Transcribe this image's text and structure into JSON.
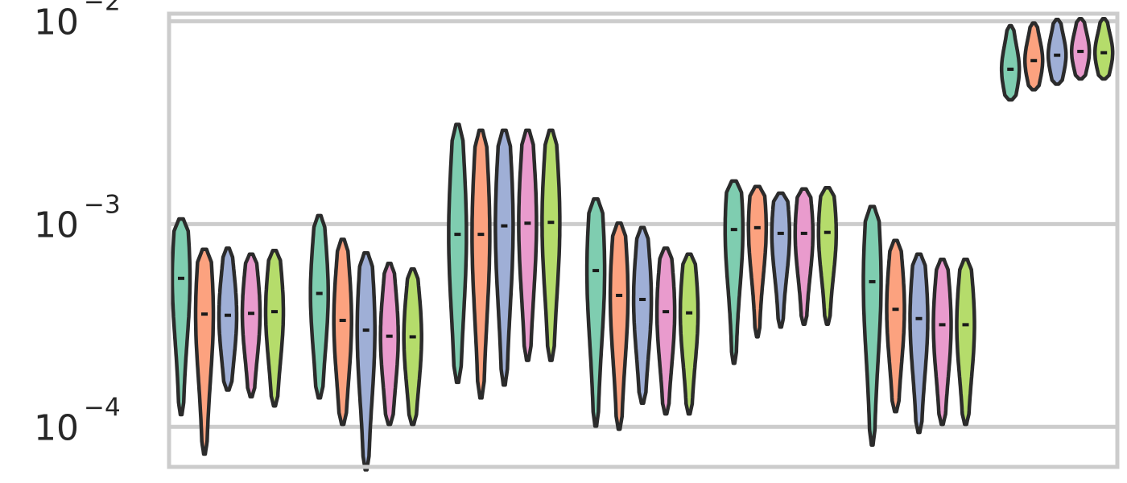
{
  "chart_data": {
    "type": "violin",
    "title": "",
    "xlabel": "",
    "ylabel": "",
    "yscale": "log",
    "ylim": [
      6e-05,
      0.0115
    ],
    "grid": true,
    "legend": "none",
    "y_ticks": [
      {
        "value": 0.0001,
        "base": "10",
        "exp": "−4"
      },
      {
        "value": 0.001,
        "base": "10",
        "exp": "−3"
      },
      {
        "value": 0.01,
        "base": "10",
        "exp": "−2"
      }
    ],
    "series_colors": [
      "#7fcdb0",
      "#fca27f",
      "#9fafd6",
      "#e99bcd",
      "#b5dc6b"
    ],
    "groups": [
      {
        "violins": [
          {
            "min": 0.000115,
            "max": 0.00106,
            "median": 0.00054
          },
          {
            "min": 7.35e-05,
            "max": 0.00075,
            "median": 0.00036
          },
          {
            "min": 0.000152,
            "max": 0.00076,
            "median": 0.000355
          },
          {
            "min": 0.000141,
            "max": 0.00071,
            "median": 0.000363
          },
          {
            "min": 0.000127,
            "max": 0.00074,
            "median": 0.00037
          }
        ]
      },
      {
        "violins": [
          {
            "min": 0.000139,
            "max": 0.0011,
            "median": 0.000455
          },
          {
            "min": 0.000103,
            "max": 0.00084,
            "median": 0.000335
          },
          {
            "min": 6.15e-05,
            "max": 0.00072,
            "median": 0.0003
          },
          {
            "min": 0.000103,
            "max": 0.00064,
            "median": 0.00028
          },
          {
            "min": 0.000103,
            "max": 0.0006,
            "median": 0.000278
          }
        ]
      },
      {
        "violins": [
          {
            "min": 0.000166,
            "max": 0.0031,
            "median": 0.00089
          },
          {
            "min": 0.000139,
            "max": 0.0029,
            "median": 0.00089
          },
          {
            "min": 0.000161,
            "max": 0.0029,
            "median": 0.00098
          },
          {
            "min": 0.000213,
            "max": 0.0029,
            "median": 0.00101
          },
          {
            "min": 0.000213,
            "max": 0.0029,
            "median": 0.00102
          }
        ]
      },
      {
        "violins": [
          {
            "min": 0.000101,
            "max": 0.00133,
            "median": 0.00059
          },
          {
            "min": 9.75e-05,
            "max": 0.00101,
            "median": 0.000445
          },
          {
            "min": 0.000131,
            "max": 0.00096,
            "median": 0.000425
          },
          {
            "min": 0.000116,
            "max": 0.00076,
            "median": 0.00037
          },
          {
            "min": 0.000116,
            "max": 0.00071,
            "median": 0.000365
          }
        ]
      },
      {
        "violins": [
          {
            "min": 0.000206,
            "max": 0.00163,
            "median": 0.00094
          },
          {
            "min": 0.000278,
            "max": 0.00153,
            "median": 0.00096
          },
          {
            "min": 0.000311,
            "max": 0.00142,
            "median": 0.0009
          },
          {
            "min": 0.000321,
            "max": 0.00149,
            "median": 0.0009
          },
          {
            "min": 0.000321,
            "max": 0.00151,
            "median": 0.00091
          }
        ]
      },
      {
        "violins": [
          {
            "min": 8.15e-05,
            "max": 0.00122,
            "median": 0.00052
          },
          {
            "min": 0.000119,
            "max": 0.00083,
            "median": 0.00038
          },
          {
            "min": 9.4e-05,
            "max": 0.00071,
            "median": 0.000342
          },
          {
            "min": 0.000103,
            "max": 0.00067,
            "median": 0.000319
          },
          {
            "min": 0.000103,
            "max": 0.00067,
            "median": 0.000319
          }
        ]
      },
      {
        "violins": [
          {
            "min": 0.0041,
            "max": 0.0095,
            "median": 0.0058
          },
          {
            "min": 0.0046,
            "max": 0.0098,
            "median": 0.0064
          },
          {
            "min": 0.0049,
            "max": 0.0102,
            "median": 0.0068
          },
          {
            "min": 0.0052,
            "max": 0.0103,
            "median": 0.0071
          },
          {
            "min": 0.0052,
            "max": 0.0103,
            "median": 0.007
          }
        ]
      }
    ]
  }
}
